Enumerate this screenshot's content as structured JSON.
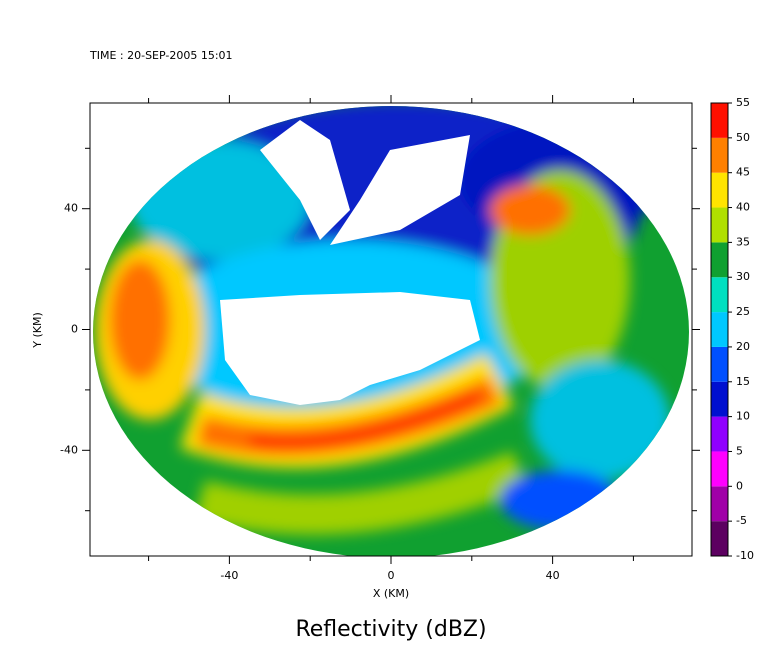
{
  "chart_data": {
    "type": "heatmap",
    "title": "TIME : 20-SEP-2005 15:01",
    "xlabel": "X (KM)",
    "ylabel": "Y (KM)",
    "xlim": [
      -74.5,
      74.5
    ],
    "ylim": [
      -75,
      75
    ],
    "xticks": [
      -40,
      0,
      40
    ],
    "yticks": [
      -40,
      0,
      40
    ],
    "xminorticks": [
      -60,
      -20,
      20,
      60
    ],
    "yminorticks": [
      -60,
      -20,
      20,
      60
    ],
    "colorbar": {
      "label": "Reflectivity (dBZ)",
      "lim": [
        -10,
        55
      ],
      "ticks": [
        -10,
        -5,
        0,
        5,
        10,
        15,
        20,
        25,
        30,
        35,
        40,
        45,
        50,
        55
      ],
      "colors": [
        "#5c0060",
        "#a000a8",
        "#ff00ff",
        "#9000ff",
        "#0010d0",
        "#0050ff",
        "#00c8ff",
        "#00e0c0",
        "#10a030",
        "#b0e000",
        "#ffe400",
        "#ff8000",
        "#ff1000"
      ]
    }
  }
}
